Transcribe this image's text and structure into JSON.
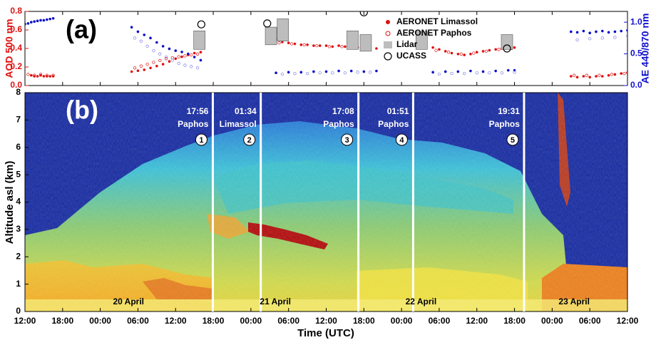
{
  "chart_data": [
    {
      "type": "scatter",
      "panel_label": "(a)",
      "ylabel": "AOD 500 nm",
      "y2label": "AE 440/870 nm",
      "xlim": [
        0,
        96
      ],
      "ylim": [
        0,
        0.8
      ],
      "yticks": [
        {
          "value": 0,
          "label": "0.0"
        },
        0.2,
        0.4,
        0.6,
        0.8
      ],
      "y2lim": [
        0,
        1.17
      ],
      "y2ticks": [
        {
          "value": 0,
          "label": "0.0"
        },
        0.5,
        {
          "value": 1,
          "label": "1.0"
        }
      ],
      "series": [
        {
          "name": "AERONET Limassol",
          "color": "#e01010",
          "marker": "filled",
          "x": [
            1,
            1.5,
            2,
            2.5,
            3,
            3.5,
            4,
            4.5,
            17,
            18,
            19,
            20,
            21,
            22,
            23,
            24,
            25,
            26,
            27,
            28,
            40,
            41,
            42,
            43,
            44,
            45,
            46,
            47,
            48,
            49,
            50,
            51,
            52,
            53,
            54,
            55,
            56,
            65,
            66,
            67,
            68,
            69,
            70,
            71,
            72,
            73,
            74,
            75,
            76,
            77,
            78,
            87,
            88,
            89,
            90,
            91,
            92,
            93,
            94,
            95,
            96
          ],
          "values": [
            0.11,
            0.1,
            0.1,
            0.11,
            0.1,
            0.1,
            0.1,
            0.1,
            0.15,
            0.16,
            0.17,
            0.19,
            0.21,
            0.23,
            0.26,
            0.29,
            0.31,
            0.33,
            0.35,
            0.36,
            0.5,
            0.47,
            0.46,
            0.45,
            0.44,
            0.44,
            0.43,
            0.43,
            0.43,
            0.42,
            0.43,
            0.42,
            0.42,
            0.41,
            0.41,
            0.4,
            0.4,
            0.41,
            0.39,
            0.37,
            0.35,
            0.34,
            0.33,
            0.34,
            0.36,
            0.37,
            0.38,
            0.39,
            0.4,
            0.41,
            0.41,
            0.1,
            0.09,
            0.1,
            0.09,
            0.1,
            0.1,
            0.11,
            0.12,
            0.13,
            0.14
          ]
        },
        {
          "name": "AERONET Paphos",
          "color": "#e01010",
          "marker": "open",
          "x": [
            0.5,
            1.5,
            2.5,
            3.5,
            4.5,
            17.5,
            18.5,
            19.5,
            20.5,
            21.5,
            22.5,
            23.5,
            24.5,
            25.5,
            26.5,
            27.5,
            40.5,
            42.5,
            44.5,
            46.5,
            48.5,
            50.5,
            52.5,
            54.5,
            65.5,
            67.5,
            69.5,
            71.5,
            73.5,
            75.5,
            77.5,
            87.5,
            89.5,
            91.5,
            93.5,
            95.5
          ],
          "values": [
            0.12,
            0.11,
            0.12,
            0.11,
            0.11,
            0.19,
            0.21,
            0.23,
            0.25,
            0.27,
            0.29,
            0.3,
            0.31,
            0.32,
            0.33,
            0.34,
            0.46,
            0.45,
            0.44,
            0.43,
            0.42,
            0.42,
            0.41,
            0.4,
            0.38,
            0.36,
            0.34,
            0.35,
            0.37,
            0.39,
            0.4,
            0.11,
            0.11,
            0.11,
            0.12,
            0.13
          ]
        },
        {
          "color": "#0a10c8",
          "marker": "filled",
          "axis": "y2",
          "x": [
            0,
            0.5,
            1,
            1.5,
            2,
            2.5,
            3,
            3.5,
            4,
            4.5,
            17,
            18,
            19,
            20,
            21,
            22,
            23,
            24,
            25,
            26,
            27,
            28,
            40,
            42,
            44,
            46,
            48,
            50,
            52,
            54,
            56,
            65,
            67,
            69,
            71,
            73,
            75,
            77,
            78,
            87,
            88,
            89,
            90,
            91,
            92,
            93,
            94,
            95,
            96
          ],
          "values": [
            0.97,
            0.98,
            1.0,
            1.01,
            1.02,
            1.03,
            1.03,
            1.04,
            1.05,
            1.06,
            0.92,
            0.85,
            0.8,
            0.75,
            0.68,
            0.62,
            0.58,
            0.55,
            0.53,
            0.5,
            0.45,
            0.4,
            0.2,
            0.21,
            0.21,
            0.22,
            0.22,
            0.23,
            0.23,
            0.22,
            0.23,
            0.21,
            0.22,
            0.22,
            0.23,
            0.22,
            0.23,
            0.24,
            0.24,
            0.85,
            0.84,
            0.86,
            0.83,
            0.85,
            0.86,
            0.84,
            0.85,
            0.86,
            0.87
          ]
        },
        {
          "color": "#7f7fe8",
          "marker": "open",
          "axis": "y2",
          "x": [
            17.5,
            18.5,
            19.5,
            20.5,
            21.5,
            22.5,
            23.5,
            24.5,
            25.5,
            26.5,
            27.5,
            41,
            43,
            45,
            47,
            49,
            51,
            53,
            55,
            66,
            68,
            70,
            72,
            74,
            76,
            78,
            88,
            90,
            92,
            94,
            96
          ],
          "values": [
            0.75,
            0.7,
            0.62,
            0.55,
            0.5,
            0.45,
            0.4,
            0.35,
            0.32,
            0.3,
            0.28,
            0.18,
            0.19,
            0.19,
            0.2,
            0.2,
            0.2,
            0.21,
            0.21,
            0.18,
            0.19,
            0.19,
            0.2,
            0.2,
            0.2,
            0.21,
            0.72,
            0.74,
            0.75,
            0.76,
            0.78
          ]
        },
        {
          "name": "Lidar",
          "color": "#bdbdbd",
          "marker": "range",
          "x": [
            27.8,
            39.2,
            41.1,
            52.2,
            54.3,
            63.2,
            76.8
          ],
          "low": [
            0.39,
            0.44,
            0.48,
            0.39,
            0.37,
            0.39,
            0.39
          ],
          "high": [
            0.59,
            0.63,
            0.72,
            0.59,
            0.55,
            0.58,
            0.55
          ]
        },
        {
          "name": "UCASS",
          "color": "#000000",
          "marker": "circle",
          "x": [
            28.1,
            38.6,
            54.0,
            76.8
          ],
          "values": [
            0.66,
            0.67,
            0.79,
            0.4
          ]
        }
      ]
    },
    {
      "type": "lidar-curtain",
      "panel_label": "(b)",
      "ylabel": "Altitude asl (km)",
      "xlabel": "Time (UTC)",
      "xlim": [
        0,
        96
      ],
      "xticks": [
        {
          "value": 0,
          "label": "12:00"
        },
        {
          "value": 6,
          "label": "18:00"
        },
        {
          "value": 12,
          "label": "00:00"
        },
        {
          "value": 18,
          "label": "06:00"
        },
        {
          "value": 24,
          "label": "12:00"
        },
        {
          "value": 30,
          "label": "18:00"
        },
        {
          "value": 36,
          "label": "00:00"
        },
        {
          "value": 42,
          "label": "06:00"
        },
        {
          "value": 48,
          "label": "12:00"
        },
        {
          "value": 54,
          "label": "18:00"
        },
        {
          "value": 60,
          "label": "00:00"
        },
        {
          "value": 66,
          "label": "06:00"
        },
        {
          "value": 72,
          "label": "12:00"
        },
        {
          "value": 78,
          "label": "18:00"
        },
        {
          "value": 84,
          "label": "00:00"
        },
        {
          "value": 90,
          "label": "06:00"
        },
        {
          "value": 96,
          "label": "12:00"
        }
      ],
      "ylim": [
        0,
        8
      ],
      "yticks": [
        0,
        1,
        2,
        3,
        4,
        5,
        6,
        7,
        8
      ],
      "overpasses": [
        {
          "time": "17:56",
          "site": "Paphos",
          "number": 1,
          "x": 29.93
        },
        {
          "time": "01:34",
          "site": "Limassol",
          "number": 2,
          "x": 37.57
        },
        {
          "time": "17:08",
          "site": "Paphos",
          "number": 3,
          "x": 53.13
        },
        {
          "time": "01:51",
          "site": "Paphos",
          "number": 4,
          "x": 61.85
        },
        {
          "time": "19:31",
          "site": "Paphos",
          "number": 5,
          "x": 79.52
        }
      ],
      "day_labels": [
        {
          "label": "20 April",
          "x": 16.5
        },
        {
          "label": "21 April",
          "x": 39.9
        },
        {
          "label": "22 April",
          "x": 63.1
        },
        {
          "label": "23 April",
          "x": 87.5
        }
      ]
    }
  ]
}
